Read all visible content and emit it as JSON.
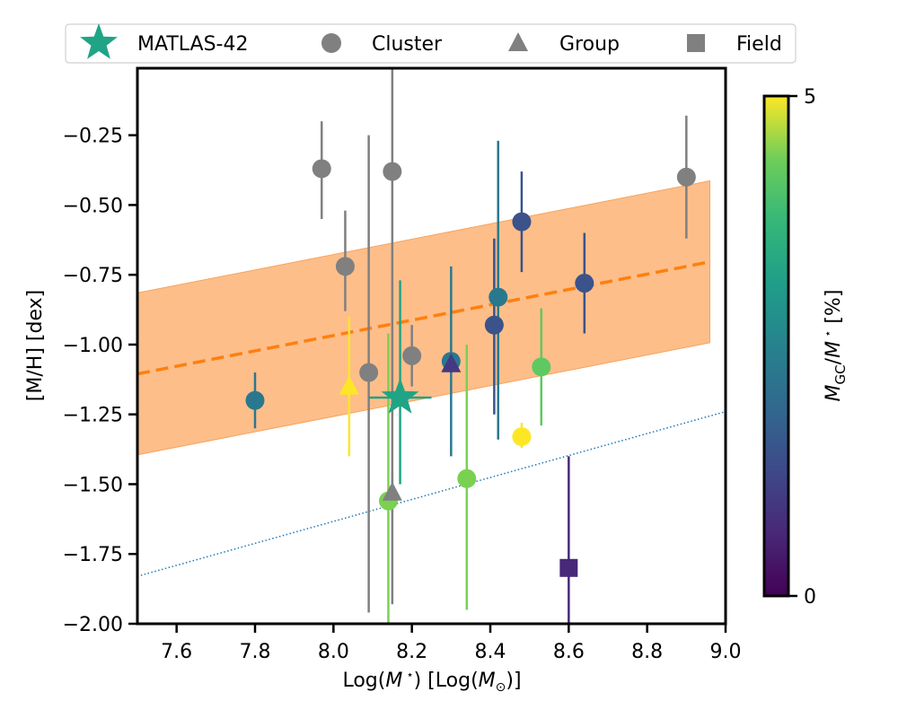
{
  "chart_data": {
    "type": "scatter",
    "xlabel": "Log(M⋆) [Log(M⊙)]",
    "xlabel_parts": [
      "Log(",
      "M",
      " ⋆",
      ") [Log(",
      "M",
      "⊙",
      ")]"
    ],
    "ylabel": "[M/H] [dex]",
    "xlim": [
      7.5,
      9.0
    ],
    "ylim": [
      -2.0,
      -0.01
    ],
    "xticks": [
      7.6,
      7.8,
      8.0,
      8.2,
      8.4,
      8.6,
      8.8,
      9.0
    ],
    "xtick_labels": [
      "7.6",
      "7.8",
      "8.0",
      "8.2",
      "8.4",
      "8.6",
      "8.8",
      "9.0"
    ],
    "yticks": [
      -2.0,
      -1.75,
      -1.5,
      -1.25,
      -1.0,
      -0.75,
      -0.5,
      -0.25
    ],
    "ytick_labels": [
      "−2.00",
      "−1.75",
      "−1.50",
      "−1.25",
      "−1.00",
      "−0.75",
      "−0.50",
      "−0.25"
    ],
    "legend": {
      "placement": "top-outside",
      "entries": [
        {
          "label": "MATLAS-42",
          "marker": "star",
          "color": "#20a486"
        },
        {
          "label": "Cluster",
          "marker": "circle",
          "color": "#808080"
        },
        {
          "label": "Group",
          "marker": "triangle",
          "color": "#808080"
        },
        {
          "label": "Field",
          "marker": "square",
          "color": "#808080"
        }
      ]
    },
    "colorbar": {
      "label": "M_GC/M⋆ [%]",
      "label_parts": [
        "M",
        "GC",
        "/",
        "M",
        " ⋆",
        "  [%]"
      ],
      "range": [
        0,
        5
      ],
      "tick_labels": [
        "0",
        "5"
      ],
      "colormap": "viridis"
    },
    "relation": {
      "slope": 0.275,
      "intercept_at_7_5": -1.105,
      "x_range": [
        7.5,
        8.96
      ],
      "scatter_dex": 0.29,
      "line_color": "#ff7f0e",
      "band_color": "#fdbb84"
    },
    "lower_line": {
      "x": [
        7.5,
        9.0
      ],
      "y": [
        -1.83,
        -1.24
      ],
      "color": "#1f77b4"
    },
    "matlas42": {
      "x": 8.17,
      "y": -1.19,
      "xerr": 0.08,
      "yerr_low": 0.31,
      "yerr_high": 0.42,
      "color": "#20a486"
    },
    "points": [
      {
        "group": "Cluster",
        "x": 7.97,
        "y": -0.37,
        "ylo": -0.55,
        "yhi": -0.2,
        "color": "#808080"
      },
      {
        "group": "Cluster",
        "x": 8.03,
        "y": -0.72,
        "ylo": -0.88,
        "yhi": -0.52,
        "color": "#808080"
      },
      {
        "group": "Cluster",
        "x": 8.09,
        "y": -1.1,
        "ylo": -1.96,
        "yhi": -0.25,
        "color": "#808080"
      },
      {
        "group": "Cluster",
        "x": 8.15,
        "y": -0.38,
        "ylo": -1.93,
        "yhi": 0.0,
        "color": "#808080"
      },
      {
        "group": "Cluster",
        "x": 8.2,
        "y": -1.04,
        "ylo": -1.15,
        "yhi": -0.93,
        "color": "#808080"
      },
      {
        "group": "Cluster",
        "x": 8.9,
        "y": -0.4,
        "ylo": -0.62,
        "yhi": -0.18,
        "color": "#808080"
      },
      {
        "group": "Cluster",
        "x": 7.8,
        "y": -1.2,
        "ylo": -1.3,
        "yhi": -1.1,
        "color": "#2a788e"
      },
      {
        "group": "Cluster",
        "x": 8.3,
        "y": -1.06,
        "ylo": -1.4,
        "yhi": -0.72,
        "color": "#2a788e"
      },
      {
        "group": "Cluster",
        "x": 8.42,
        "y": -0.83,
        "ylo": -1.34,
        "yhi": -0.27,
        "color": "#2a788e"
      },
      {
        "group": "Cluster",
        "x": 8.41,
        "y": -0.93,
        "ylo": -1.25,
        "yhi": -0.62,
        "color": "#3b528b"
      },
      {
        "group": "Cluster",
        "x": 8.48,
        "y": -0.56,
        "ylo": -0.74,
        "yhi": -0.38,
        "color": "#3b528b"
      },
      {
        "group": "Cluster",
        "x": 8.64,
        "y": -0.78,
        "ylo": -0.96,
        "yhi": -0.6,
        "color": "#3b528b"
      },
      {
        "group": "Cluster",
        "x": 8.14,
        "y": -1.56,
        "ylo": -2.0,
        "yhi": -0.96,
        "color": "#7ad151"
      },
      {
        "group": "Cluster",
        "x": 8.34,
        "y": -1.48,
        "ylo": -1.95,
        "yhi": -1.0,
        "color": "#7ad151"
      },
      {
        "group": "Cluster",
        "x": 8.53,
        "y": -1.08,
        "ylo": -1.29,
        "yhi": -0.87,
        "color": "#5ec962"
      },
      {
        "group": "Cluster",
        "x": 8.48,
        "y": -1.33,
        "ylo": -1.37,
        "yhi": -1.28,
        "color": "#fde725"
      },
      {
        "group": "Group",
        "x": 8.04,
        "y": -1.15,
        "ylo": -1.4,
        "yhi": -0.9,
        "color": "#fde725"
      },
      {
        "group": "Group",
        "x": 8.3,
        "y": -1.07,
        "ylo": -1.1,
        "yhi": -1.04,
        "color": "#443983"
      },
      {
        "group": "Group",
        "x": 8.15,
        "y": -1.53,
        "ylo": -1.6,
        "yhi": -1.46,
        "color": "#808080"
      },
      {
        "group": "Field",
        "x": 8.6,
        "y": -1.8,
        "ylo": -2.0,
        "yhi": -1.4,
        "color": "#482878"
      }
    ]
  }
}
